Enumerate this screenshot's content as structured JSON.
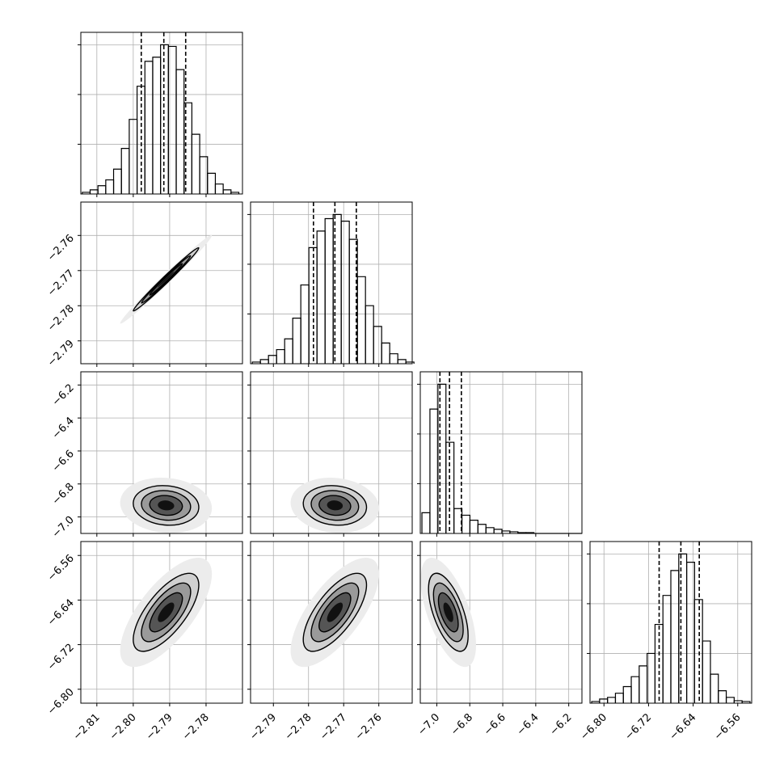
{
  "chart_data": {
    "type": "corner",
    "grid": true,
    "line_color": "#000000",
    "grid_color": "#b0b0b0",
    "hist_ylim": [
      0,
      195
    ],
    "hist_yticks": [
      60,
      120,
      180
    ],
    "contour_levels": [
      0.5,
      1,
      1.5,
      2,
      2.8
    ],
    "contour_fills": [
      "#111111",
      "#555555",
      "#9a9a9a",
      "#d0d0d0",
      "#ececec"
    ],
    "parameters": [
      {
        "range": [
          -2.8144,
          -2.77
        ],
        "mean": -2.791,
        "sd": 0.0045,
        "quantiles": [
          -2.7978,
          -2.7916,
          -2.7856
        ],
        "ticks": [
          {
            "value": -2.81,
            "label": "−2.81"
          },
          {
            "value": -2.8,
            "label": "−2.80"
          },
          {
            "value": -2.79,
            "label": "−2.79"
          },
          {
            "value": -2.78,
            "label": "−2.78"
          }
        ],
        "bins": [
          -2.814,
          -2.81185,
          -2.8097,
          -2.80755,
          -2.8054,
          -2.80325,
          -2.8011,
          -2.79895,
          -2.7968,
          -2.79465,
          -2.7925,
          -2.79035,
          -2.7882,
          -2.78605,
          -2.7839,
          -2.78175,
          -2.7796,
          -2.77745,
          -2.7753,
          -2.77315,
          -2.771
        ],
        "counts": [
          2,
          5,
          10,
          17,
          30,
          55,
          90,
          130,
          160,
          165,
          180,
          178,
          150,
          110,
          72,
          45,
          25,
          12,
          5,
          2
        ]
      },
      {
        "range": [
          -2.7965,
          -2.7505
        ],
        "mean": -2.7725,
        "sd": 0.0045,
        "quantiles": [
          -2.7786,
          -2.7725,
          -2.7664
        ],
        "ticks": [
          {
            "value": -2.79,
            "label": "−2.79"
          },
          {
            "value": -2.78,
            "label": "−2.78"
          },
          {
            "value": -2.77,
            "label": "−2.77"
          },
          {
            "value": -2.76,
            "label": "−2.76"
          }
        ],
        "bins": [
          -2.796,
          -2.7937,
          -2.7914,
          -2.7891,
          -2.7868,
          -2.7845,
          -2.7822,
          -2.7799,
          -2.7776,
          -2.7753,
          -2.773,
          -2.7707,
          -2.7684,
          -2.7661,
          -2.7638,
          -2.7615,
          -2.7592,
          -2.7569,
          -2.7546,
          -2.7523,
          -2.75
        ],
        "counts": [
          2,
          5,
          10,
          17,
          30,
          55,
          95,
          140,
          160,
          175,
          180,
          172,
          150,
          105,
          70,
          45,
          25,
          12,
          5,
          2
        ]
      },
      {
        "range": [
          -7.1,
          -6.12
        ],
        "mean": -6.93,
        "sd": 0.06,
        "quantiles": [
          -6.981,
          -6.923,
          -6.851
        ],
        "ticks": [
          {
            "value": -7.0,
            "label": "−7.0"
          },
          {
            "value": -6.8,
            "label": "−6.8"
          },
          {
            "value": -6.6,
            "label": "−6.6"
          },
          {
            "value": -6.4,
            "label": "−6.4"
          },
          {
            "value": -6.2,
            "label": "−6.2"
          }
        ],
        "bins": [
          -7.09,
          -7.0415,
          -6.993,
          -6.9445,
          -6.896,
          -6.8475,
          -6.799,
          -6.7505,
          -6.702,
          -6.6535,
          -6.605,
          -6.5565,
          -6.508,
          -6.4595,
          -6.411,
          -6.3625,
          -6.314,
          -6.2655,
          -6.217,
          -6.1685,
          -6.12
        ],
        "counts": [
          25,
          150,
          180,
          110,
          30,
          22,
          16,
          11,
          7,
          5,
          3,
          2,
          1,
          1,
          0,
          0,
          0,
          0,
          0,
          0
        ]
      },
      {
        "range": [
          -6.825,
          -6.535
        ],
        "mean": -6.662,
        "sd": 0.035,
        "quantiles": [
          -6.701,
          -6.662,
          -6.629
        ],
        "ticks": [
          {
            "value": -6.8,
            "label": "−6.80"
          },
          {
            "value": -6.72,
            "label": "−6.72"
          },
          {
            "value": -6.64,
            "label": "−6.64"
          },
          {
            "value": -6.56,
            "label": "−6.56"
          }
        ],
        "bins": [
          -6.822,
          -6.8078,
          -6.7936,
          -6.7794,
          -6.7652,
          -6.751,
          -6.7368,
          -6.7226,
          -6.7084,
          -6.6942,
          -6.68,
          -6.6658,
          -6.6516,
          -6.6374,
          -6.6232,
          -6.609,
          -6.5948,
          -6.5806,
          -6.5664,
          -6.5522,
          -6.538
        ],
        "counts": [
          2,
          5,
          7,
          12,
          20,
          32,
          45,
          60,
          95,
          130,
          160,
          180,
          170,
          125,
          75,
          35,
          15,
          7,
          3,
          2
        ]
      }
    ],
    "panels": [
      {
        "x": 0,
        "y": 1,
        "rho": 0.99
      },
      {
        "x": 0,
        "y": 2,
        "rho": -0.1
      },
      {
        "x": 1,
        "y": 2,
        "rho": -0.1
      },
      {
        "x": 0,
        "y": 3,
        "rho": 0.7
      },
      {
        "x": 1,
        "y": 3,
        "rho": 0.7
      },
      {
        "x": 2,
        "y": 3,
        "rho": -0.6
      }
    ]
  }
}
